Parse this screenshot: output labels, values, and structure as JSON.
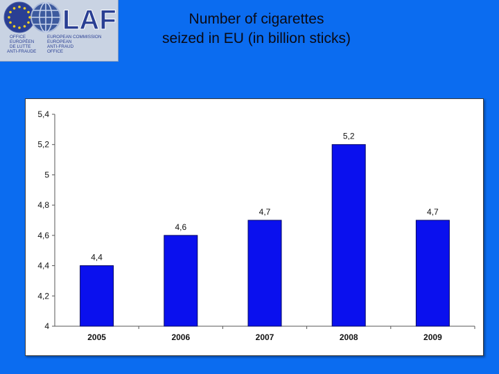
{
  "logo": {
    "brand": "OLAF",
    "left_lines": [
      "OFFICE",
      "EUROPÉEN",
      "DE LUTTE",
      "ANTI-FRAUDE"
    ],
    "right_lines": [
      "EUROPEAN COMMISSION",
      "EUROPEAN",
      "ANTI-FRAUD",
      "OFFICE"
    ]
  },
  "title": {
    "line1": "Number of cigarettes",
    "line2": "seized in EU (in billion sticks)"
  },
  "colors": {
    "background": "#0b6cf0",
    "bar": "#0a10ee",
    "bar_stroke": "#050860"
  },
  "chart_data": {
    "type": "bar",
    "categories": [
      "2005",
      "2006",
      "2007",
      "2008",
      "2009"
    ],
    "values": [
      4.4,
      4.6,
      4.7,
      5.2,
      4.7
    ],
    "value_labels": [
      "4,4",
      "4,6",
      "4,7",
      "5,2",
      "4,7"
    ],
    "y_ticks": [
      4,
      4.2,
      4.4,
      4.6,
      4.8,
      5,
      5.2,
      5.4
    ],
    "y_tick_labels": [
      "4",
      "4,2",
      "4,4",
      "4,6",
      "4,8",
      "5",
      "5,2",
      "5,4"
    ],
    "ylim": [
      4,
      5.4
    ],
    "grid": false,
    "legend": "none"
  }
}
